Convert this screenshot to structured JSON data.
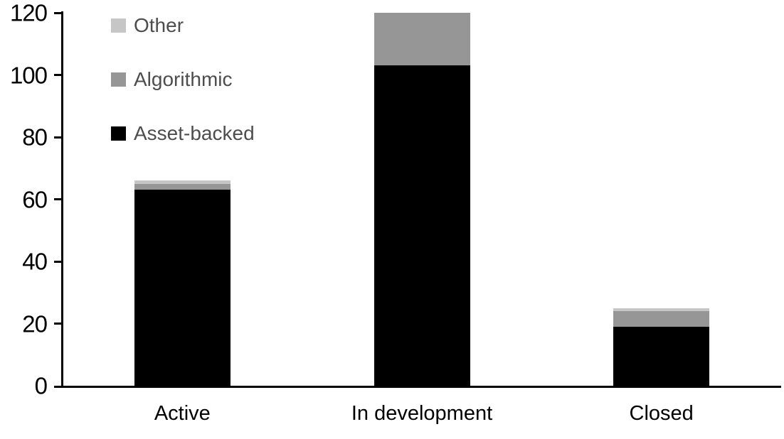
{
  "chart_data": {
    "type": "bar",
    "stacked": true,
    "title": "",
    "xlabel": "",
    "ylabel": "",
    "categories": [
      "Active",
      "In development",
      "Closed"
    ],
    "series": [
      {
        "name": "Asset-backed",
        "color": "#000000",
        "values": [
          63,
          103,
          19
        ]
      },
      {
        "name": "Algorithmic",
        "color": "#969696",
        "values": [
          2,
          17,
          5
        ]
      },
      {
        "name": "Other",
        "color": "#c6c6c6",
        "values": [
          1,
          0,
          1
        ]
      }
    ],
    "totals": [
      66,
      120,
      25
    ],
    "yticks": [
      0,
      20,
      40,
      60,
      80,
      100,
      120
    ],
    "ylim": [
      0,
      120
    ],
    "grid": false,
    "legend": {
      "position": "top-left",
      "items": [
        {
          "label": "Other",
          "color": "#c6c6c6"
        },
        {
          "label": "Algorithmic",
          "color": "#969696"
        },
        {
          "label": "Asset-backed",
          "color": "#000000"
        }
      ]
    },
    "axis_color": "#000000",
    "tick_label_color": "#000000",
    "legend_text_color": "#4d4d4d",
    "background_color": "#ffffff"
  }
}
